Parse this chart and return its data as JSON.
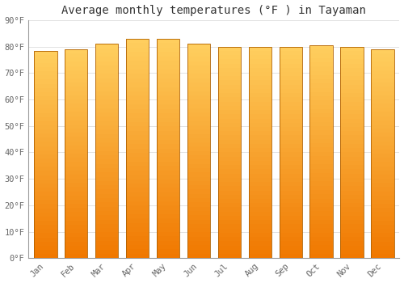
{
  "title": "Average monthly temperatures (°F ) in Tayaman",
  "months": [
    "Jan",
    "Feb",
    "Mar",
    "Apr",
    "May",
    "Jun",
    "Jul",
    "Aug",
    "Sep",
    "Oct",
    "Nov",
    "Dec"
  ],
  "values": [
    78.5,
    79.0,
    81.0,
    83.0,
    83.0,
    81.0,
    80.0,
    80.0,
    80.0,
    80.5,
    80.0,
    79.0
  ],
  "ylim": [
    0,
    90
  ],
  "yticks": [
    0,
    10,
    20,
    30,
    40,
    50,
    60,
    70,
    80,
    90
  ],
  "ytick_labels": [
    "0°F",
    "10°F",
    "20°F",
    "30°F",
    "40°F",
    "50°F",
    "60°F",
    "70°F",
    "80°F",
    "90°F"
  ],
  "bar_color_bright": "#FFD060",
  "bar_color_mid": "#FFAB00",
  "bar_color_dark": "#F07800",
  "bar_edge_color": "#B06000",
  "background_color": "#FFFFFF",
  "plot_bg_color": "#FFFFFF",
  "grid_color": "#DDDDDD",
  "title_fontsize": 10,
  "tick_fontsize": 7.5,
  "font_family": "monospace",
  "bar_width": 0.75
}
